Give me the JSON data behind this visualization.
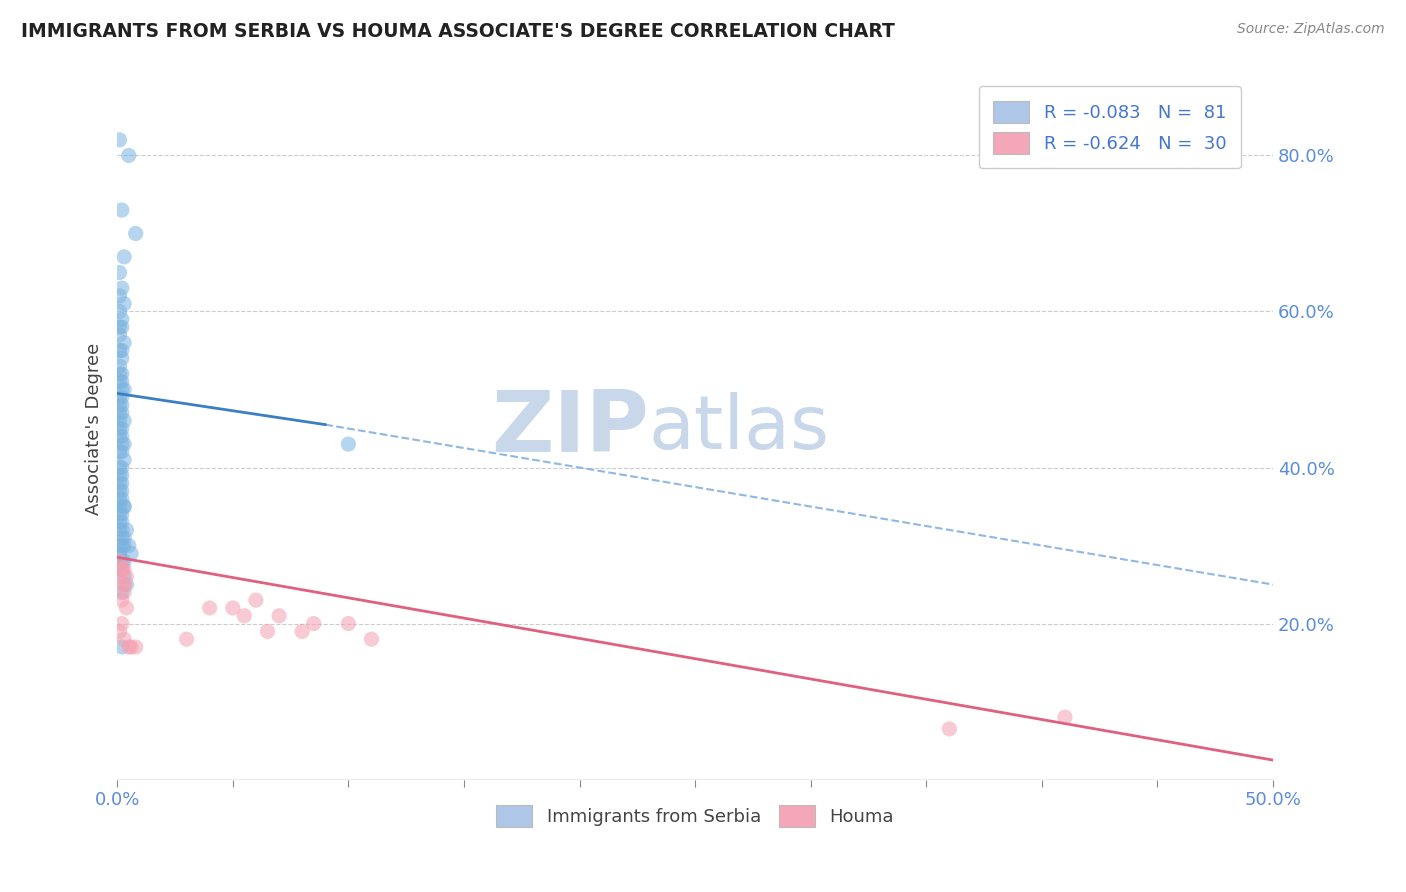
{
  "title": "IMMIGRANTS FROM SERBIA VS HOUMA ASSOCIATE'S DEGREE CORRELATION CHART",
  "source": "Source: ZipAtlas.com",
  "ylabel": "Associate's Degree",
  "legend_1_label": "R = -0.083   N =  81",
  "legend_2_label": "R = -0.624   N =  30",
  "legend_1_color": "#aec6e8",
  "legend_2_color": "#f4a7b9",
  "blue_scatter_color": "#7bb3e0",
  "pink_scatter_color": "#f4a0b0",
  "blue_line_color": "#3a7fc1",
  "pink_line_color": "#e06080",
  "dashed_line_color": "#90b8e0",
  "watermark_zip": "ZIP",
  "watermark_atlas": "atlas",
  "watermark_color": "#c8d8ea",
  "background_color": "#ffffff",
  "xlim": [
    0.0,
    0.5
  ],
  "ylim": [
    0.0,
    0.9
  ],
  "blue_scatter_x": [
    0.001,
    0.005,
    0.002,
    0.008,
    0.003,
    0.001,
    0.002,
    0.001,
    0.003,
    0.001,
    0.002,
    0.001,
    0.002,
    0.001,
    0.003,
    0.002,
    0.001,
    0.002,
    0.001,
    0.002,
    0.001,
    0.002,
    0.001,
    0.003,
    0.002,
    0.001,
    0.002,
    0.001,
    0.002,
    0.001,
    0.002,
    0.001,
    0.003,
    0.002,
    0.001,
    0.002,
    0.001,
    0.003,
    0.002,
    0.001,
    0.002,
    0.003,
    0.001,
    0.002,
    0.001,
    0.002,
    0.001,
    0.002,
    0.001,
    0.002,
    0.001,
    0.002,
    0.001,
    0.003,
    0.002,
    0.001,
    0.002,
    0.001,
    0.002,
    0.001,
    0.002,
    0.003,
    0.001,
    0.002,
    0.001,
    0.001,
    0.002,
    0.001,
    0.002,
    0.001,
    0.004,
    0.003,
    0.005,
    0.003,
    0.1,
    0.003,
    0.004,
    0.002,
    0.006,
    0.003,
    0.002
  ],
  "blue_scatter_y": [
    0.82,
    0.8,
    0.73,
    0.7,
    0.67,
    0.65,
    0.63,
    0.62,
    0.61,
    0.6,
    0.59,
    0.58,
    0.58,
    0.57,
    0.56,
    0.55,
    0.55,
    0.54,
    0.53,
    0.52,
    0.52,
    0.51,
    0.51,
    0.5,
    0.5,
    0.49,
    0.49,
    0.48,
    0.48,
    0.47,
    0.47,
    0.46,
    0.46,
    0.45,
    0.45,
    0.44,
    0.44,
    0.43,
    0.43,
    0.42,
    0.42,
    0.41,
    0.4,
    0.4,
    0.39,
    0.39,
    0.38,
    0.38,
    0.37,
    0.37,
    0.36,
    0.36,
    0.35,
    0.35,
    0.34,
    0.34,
    0.33,
    0.33,
    0.32,
    0.32,
    0.31,
    0.31,
    0.3,
    0.3,
    0.29,
    0.29,
    0.28,
    0.28,
    0.27,
    0.27,
    0.32,
    0.3,
    0.3,
    0.35,
    0.43,
    0.26,
    0.25,
    0.24,
    0.29,
    0.28,
    0.17
  ],
  "pink_scatter_x": [
    0.001,
    0.002,
    0.001,
    0.003,
    0.003,
    0.002,
    0.004,
    0.003,
    0.002,
    0.001,
    0.003,
    0.005,
    0.002,
    0.004,
    0.003,
    0.06,
    0.07,
    0.085,
    0.1,
    0.11,
    0.04,
    0.05,
    0.055,
    0.065,
    0.08,
    0.006,
    0.008,
    0.03,
    0.36,
    0.41
  ],
  "pink_scatter_y": [
    0.28,
    0.27,
    0.26,
    0.25,
    0.24,
    0.23,
    0.22,
    0.27,
    0.2,
    0.19,
    0.18,
    0.17,
    0.27,
    0.26,
    0.25,
    0.23,
    0.21,
    0.2,
    0.2,
    0.18,
    0.22,
    0.22,
    0.21,
    0.19,
    0.19,
    0.17,
    0.17,
    0.18,
    0.065,
    0.08
  ],
  "blue_solid_line_x": [
    0.0,
    0.09
  ],
  "blue_solid_line_y": [
    0.495,
    0.455
  ],
  "blue_dashed_line_x": [
    0.09,
    0.5
  ],
  "blue_dashed_line_y": [
    0.455,
    0.25
  ],
  "pink_line_x": [
    0.0,
    0.5
  ],
  "pink_line_y": [
    0.285,
    0.025
  ],
  "right_ytick_vals": [
    0.2,
    0.4,
    0.6,
    0.8
  ],
  "right_ytick_labels": [
    "20.0%",
    "40.0%",
    "60.0%",
    "80.0%"
  ]
}
